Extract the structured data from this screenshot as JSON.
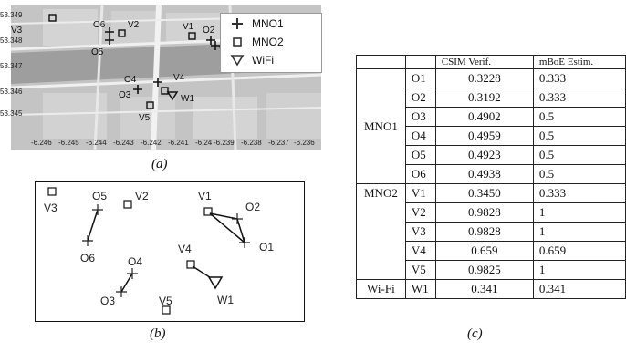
{
  "panel_a": {
    "caption": "(a)",
    "y_ticks": [
      "53.349",
      "53.348",
      "53.347",
      "53.346",
      "53.345"
    ],
    "x_ticks": [
      "-6.246",
      "-6.245",
      "-6.244",
      "-6.243",
      "-6.242",
      "-6.241",
      "-6.24",
      "-6.239",
      "-6.238",
      "-6.237",
      "-6.236"
    ],
    "legend": [
      {
        "symbol": "plus",
        "label": "MNO1"
      },
      {
        "symbol": "square",
        "label": "MNO2"
      },
      {
        "symbol": "triangle",
        "label": "WiFi"
      }
    ],
    "labels": {
      "V1": "V1",
      "V2": "V2",
      "V3": "V3",
      "V4": "V4",
      "V5": "V5",
      "O1": "O1",
      "O2": "O2",
      "O3": "O3",
      "O4": "O4",
      "O5": "O5",
      "O6": "O6",
      "W1": "W1"
    }
  },
  "panel_b": {
    "caption": "(b)",
    "labels": {
      "V1": "V1",
      "V2": "V2",
      "V3": "V3",
      "V4": "V4",
      "V5": "V5",
      "O1": "O1",
      "O2": "O2",
      "O3": "O3",
      "O4": "O4",
      "O5": "O5",
      "O6": "O6",
      "W1": "W1"
    }
  },
  "panel_c": {
    "caption": "(c)",
    "headers": [
      "",
      "",
      "CSIM Verif.",
      "mBoE Estim."
    ],
    "groups": [
      {
        "operator": "MNO1",
        "rows": [
          {
            "id": "O1",
            "csim": "0.3228",
            "mboe": "0.333"
          },
          {
            "id": "O2",
            "csim": "0.3192",
            "mboe": "0.333"
          },
          {
            "id": "O3",
            "csim": "0.4902",
            "mboe": "0.5"
          },
          {
            "id": "O4",
            "csim": "0.4959",
            "mboe": "0.5"
          },
          {
            "id": "O5",
            "csim": "0.4923",
            "mboe": "0.5"
          },
          {
            "id": "O6",
            "csim": "0.4938",
            "mboe": "0.5"
          }
        ]
      },
      {
        "operator": "MNO2",
        "rows": [
          {
            "id": "V1",
            "csim": "0.3450",
            "mboe": "0.333"
          },
          {
            "id": "V2",
            "csim": "0.9828",
            "mboe": "1"
          },
          {
            "id": "V3",
            "csim": "0.9828",
            "mboe": "1"
          },
          {
            "id": "V4",
            "csim": "0.659",
            "mboe": "0.659"
          },
          {
            "id": "V5",
            "csim": "0.9825",
            "mboe": "1"
          }
        ]
      },
      {
        "operator": "Wi-Fi",
        "rows": [
          {
            "id": "W1",
            "csim": "0.341",
            "mboe": "0.341"
          }
        ]
      }
    ]
  }
}
